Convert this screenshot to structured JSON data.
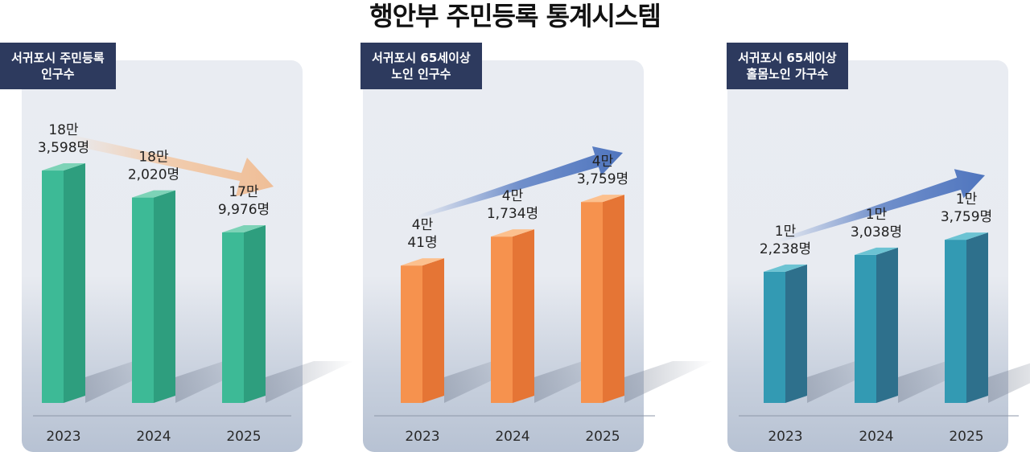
{
  "page_title": "행안부 주민등록 통계시스템",
  "colors": {
    "label_bg": "#2d3a5e",
    "green": "#3dba96",
    "orange": "#f6924e",
    "teal": "#339ab3"
  },
  "chart_data": [
    {
      "type": "bar",
      "title_lines": [
        "서귀포시 주민등록",
        "인구수"
      ],
      "categories": [
        "2023",
        "2024",
        "2025"
      ],
      "values": [
        183598,
        182020,
        179976
      ],
      "value_labels": [
        [
          "18만",
          "3,598명"
        ],
        [
          "18만",
          "2,020명"
        ],
        [
          "17만",
          "9,976명"
        ]
      ],
      "trend": "down",
      "color": "green"
    },
    {
      "type": "bar",
      "title_lines": [
        "서귀포시 65세이상",
        "노인 인구수"
      ],
      "categories": [
        "2023",
        "2024",
        "2025"
      ],
      "values": [
        40041,
        41734,
        43759
      ],
      "value_labels": [
        [
          "4만",
          "41명"
        ],
        [
          "4만",
          "1,734명"
        ],
        [
          "4만",
          "3,759명"
        ]
      ],
      "trend": "up",
      "color": "orange"
    },
    {
      "type": "bar",
      "title_lines": [
        "서귀포시 65세이상",
        "홀몸노인 가구수"
      ],
      "categories": [
        "2023",
        "2024",
        "2025"
      ],
      "values": [
        12238,
        13038,
        13759
      ],
      "value_labels": [
        [
          "1만",
          "2,238명"
        ],
        [
          "1만",
          "3,038명"
        ],
        [
          "1만",
          "3,759명"
        ]
      ],
      "trend": "up",
      "color": "teal"
    }
  ]
}
